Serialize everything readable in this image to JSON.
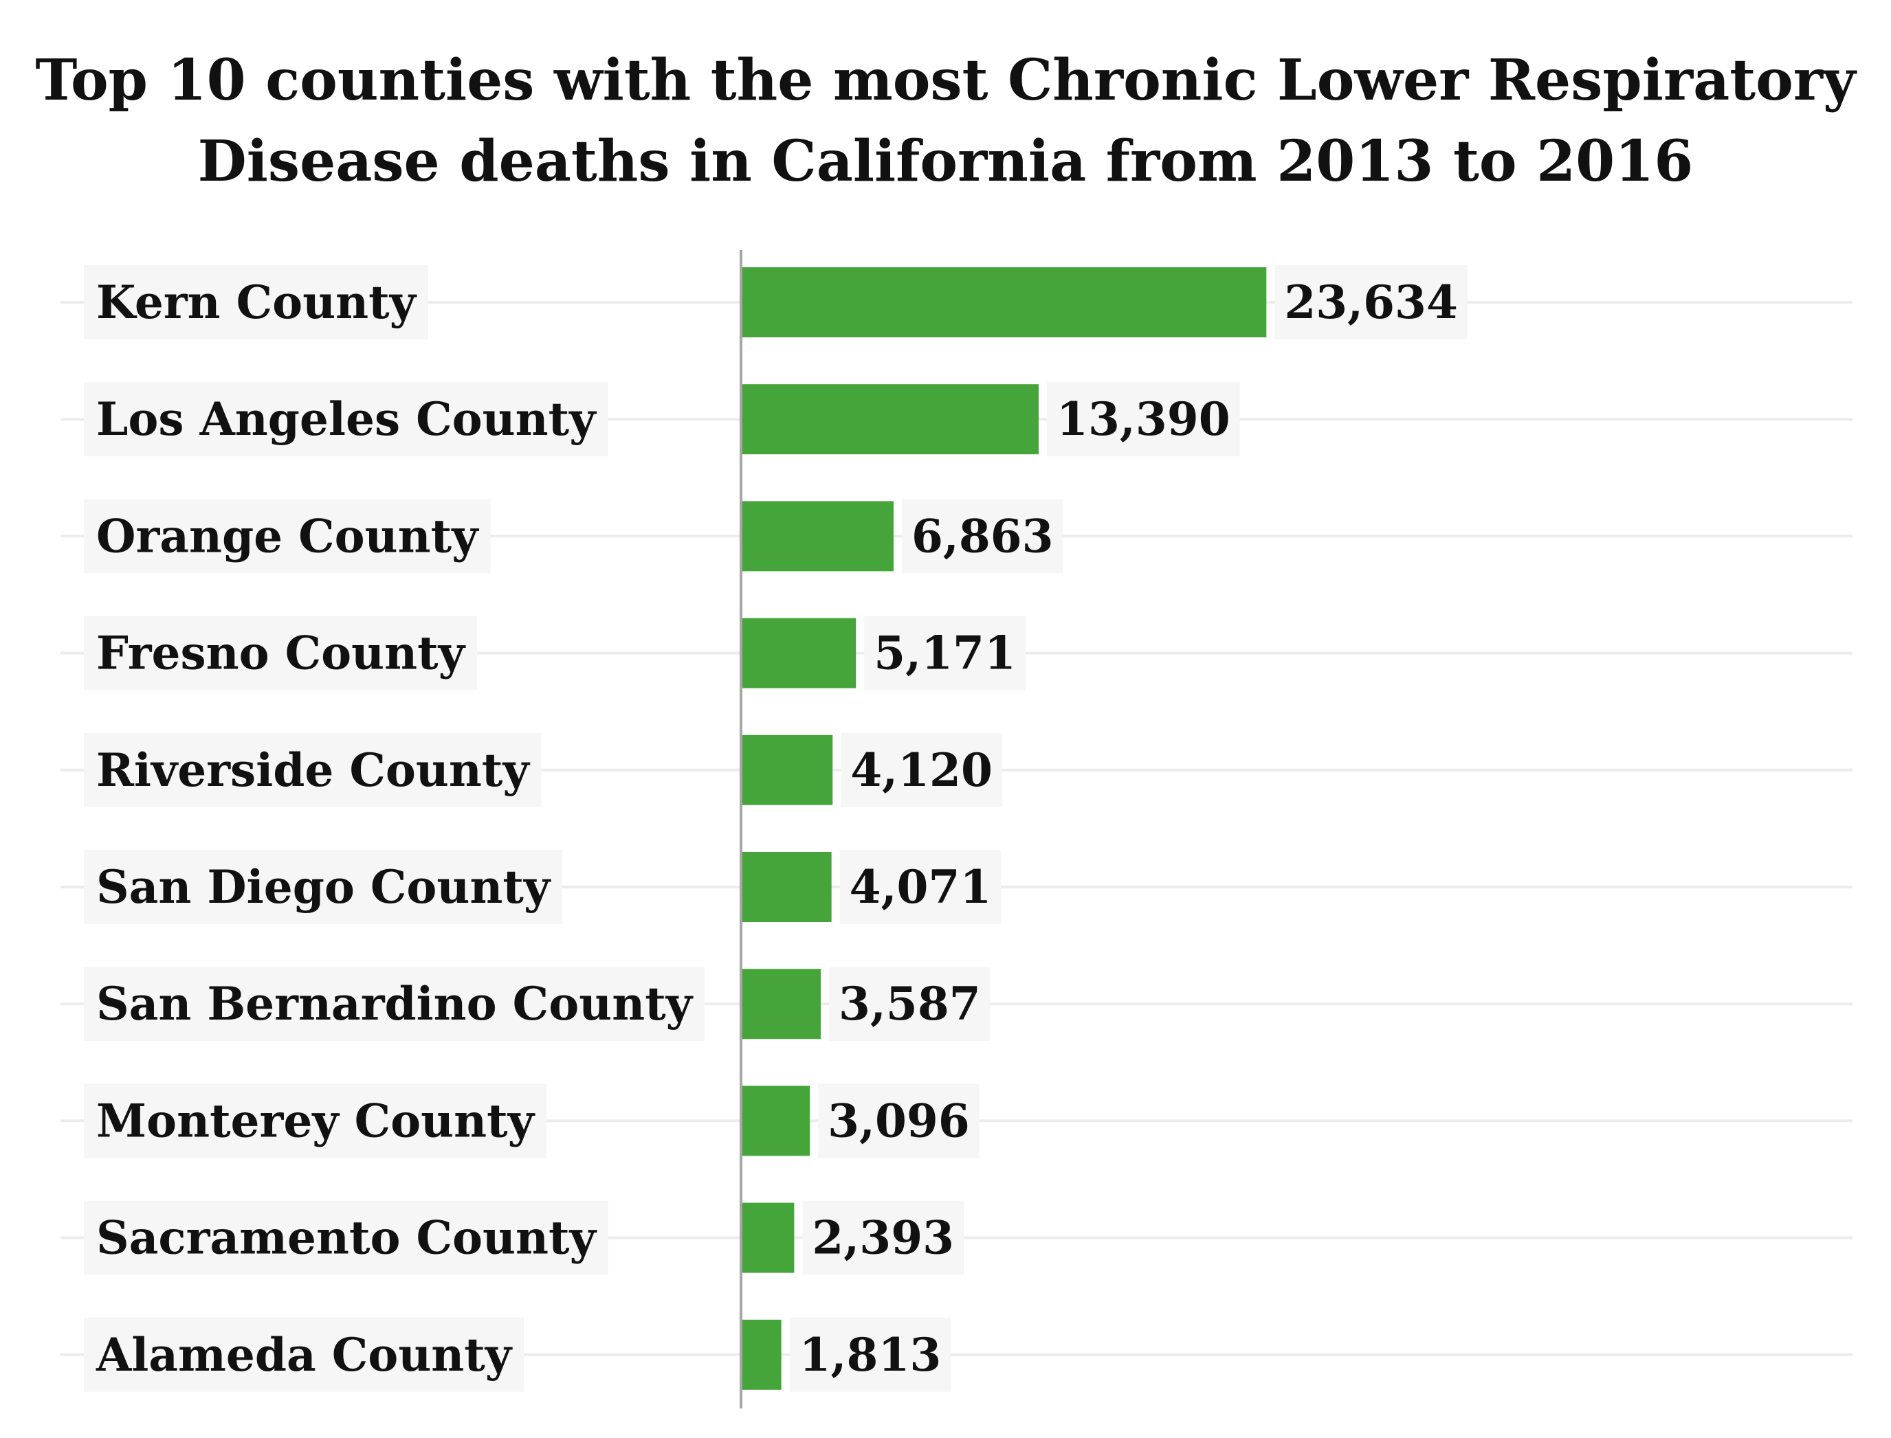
{
  "chart_data": {
    "type": "bar",
    "orientation": "horizontal",
    "title": "Top 10 counties with the most Chronic Lower Respiratory Disease deaths in California from 2013 to 2016",
    "title_lines": [
      "Top 10 counties with the most Chronic Lower Respiratory",
      "Disease deaths in California from 2013 to 2016"
    ],
    "xlabel": "",
    "ylabel": "",
    "categories": [
      "Kern County",
      "Los Angeles County",
      "Orange County",
      "Fresno County",
      "Riverside County",
      "San Diego County",
      "San Bernardino County",
      "Monterey County",
      "Sacramento County",
      "Alameda County"
    ],
    "values": [
      23634,
      13390,
      6863,
      5171,
      4120,
      4071,
      3587,
      3096,
      2393,
      1813
    ],
    "value_labels": [
      "23,634",
      "13,390",
      "6,863",
      "5,171",
      "4,120",
      "4,071",
      "3,587",
      "3,096",
      "2,393",
      "1,813"
    ],
    "xlim": [
      0,
      50000
    ],
    "grid": true,
    "legend": "none",
    "colors": {
      "bar": "#45a53a",
      "axis": "#a6a6a6",
      "grid": "#ececec",
      "label_bg": "#f6f6f6",
      "text": "#111111"
    }
  }
}
